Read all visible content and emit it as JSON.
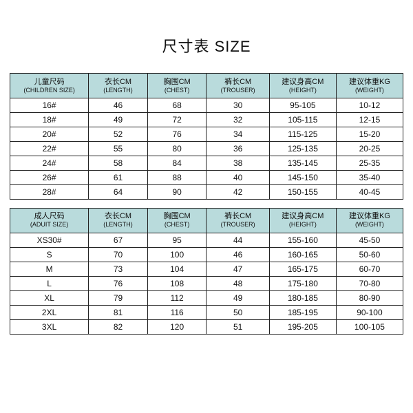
{
  "title": "尺寸表 SIZE",
  "colors": {
    "header_bg": "#b9dbdc",
    "border": "#222222",
    "text": "#111111",
    "background": "#ffffff"
  },
  "children": {
    "columns": [
      {
        "cn": "儿童尺码",
        "en": "(CHILDREN SIZE)"
      },
      {
        "cn": "衣长CM",
        "en": "(LENGTH)"
      },
      {
        "cn": "胸围CM",
        "en": "(CHEST)"
      },
      {
        "cn": "裤长CM",
        "en": "(TROUSER)"
      },
      {
        "cn": "建议身高CM",
        "en": "(HEIGHT)"
      },
      {
        "cn": "建议体重KG",
        "en": "(WEIGHT)"
      }
    ],
    "rows": [
      [
        "16#",
        "46",
        "68",
        "30",
        "95-105",
        "10-12"
      ],
      [
        "18#",
        "49",
        "72",
        "32",
        "105-115",
        "12-15"
      ],
      [
        "20#",
        "52",
        "76",
        "34",
        "115-125",
        "15-20"
      ],
      [
        "22#",
        "55",
        "80",
        "36",
        "125-135",
        "20-25"
      ],
      [
        "24#",
        "58",
        "84",
        "38",
        "135-145",
        "25-35"
      ],
      [
        "26#",
        "61",
        "88",
        "40",
        "145-150",
        "35-40"
      ],
      [
        "28#",
        "64",
        "90",
        "42",
        "150-155",
        "40-45"
      ]
    ]
  },
  "adult": {
    "columns": [
      {
        "cn": "成人尺码",
        "en": "(ADUIT SIZE)"
      },
      {
        "cn": "衣长CM",
        "en": "(LENGTH)"
      },
      {
        "cn": "胸围CM",
        "en": "(CHEST)"
      },
      {
        "cn": "裤长CM",
        "en": "(TROUSER)"
      },
      {
        "cn": "建议身高CM",
        "en": "(HEIGHT)"
      },
      {
        "cn": "建议体重KG",
        "en": "(WEIGHT)"
      }
    ],
    "rows": [
      [
        "XS30#",
        "67",
        "95",
        "44",
        "155-160",
        "45-50"
      ],
      [
        "S",
        "70",
        "100",
        "46",
        "160-165",
        "50-60"
      ],
      [
        "M",
        "73",
        "104",
        "47",
        "165-175",
        "60-70"
      ],
      [
        "L",
        "76",
        "108",
        "48",
        "175-180",
        "70-80"
      ],
      [
        "XL",
        "79",
        "112",
        "49",
        "180-185",
        "80-90"
      ],
      [
        "2XL",
        "81",
        "116",
        "50",
        "185-195",
        "90-100"
      ],
      [
        "3XL",
        "82",
        "120",
        "51",
        "195-205",
        "100-105"
      ]
    ]
  }
}
